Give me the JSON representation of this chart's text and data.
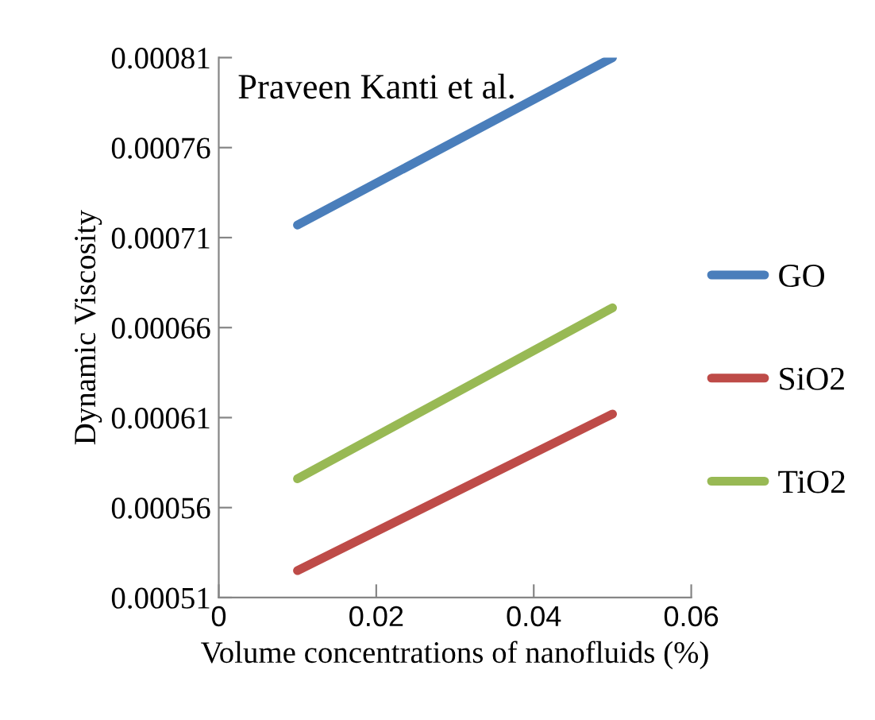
{
  "chart_data": {
    "type": "line",
    "xlabel": "Volume concentrations of nanofluids (%)",
    "ylabel": "Dynamic Viscosity",
    "annotations": [
      "Praveen Kanti et al."
    ],
    "x": [
      0.01,
      0.05
    ],
    "series": [
      {
        "name": "GO",
        "color": "#4a7ebb",
        "values": [
          0.000717,
          0.00081
        ]
      },
      {
        "name": "SiO2",
        "color": "#be4b48",
        "values": [
          0.000525,
          0.000612
        ]
      },
      {
        "name": "TiO2",
        "color": "#98b954",
        "values": [
          0.000576,
          0.000671
        ]
      }
    ],
    "xlim": [
      0,
      0.06
    ],
    "xticks": [
      0,
      0.02,
      0.04,
      0.06
    ],
    "ylim": [
      0.00051,
      0.00081
    ],
    "yticks": [
      0.00051,
      0.00056,
      0.00061,
      0.00066,
      0.00071,
      0.00076,
      0.00081
    ],
    "grid": false,
    "legend": "right",
    "marker": "none",
    "line_style": "solid"
  }
}
